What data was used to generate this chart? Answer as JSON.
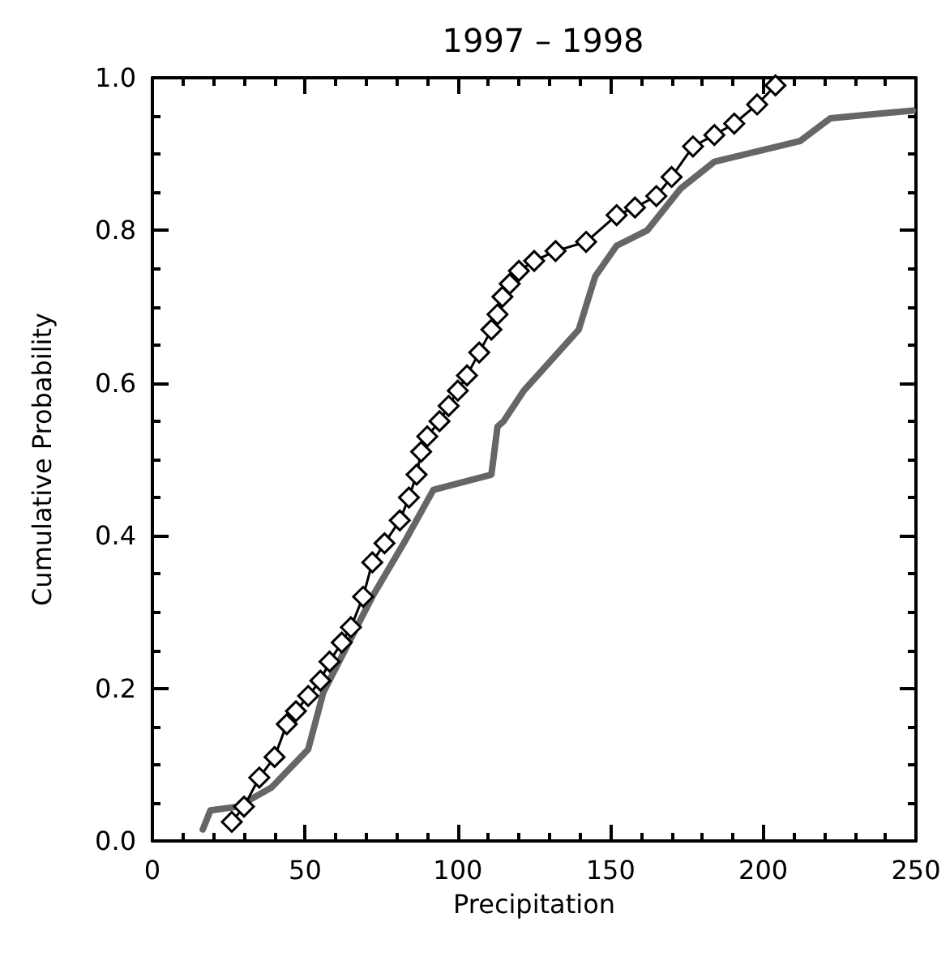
{
  "chart_data": {
    "type": "line",
    "title": "1997 – 1998",
    "xlabel": "Precipitation",
    "ylabel": "Cumulative Probability",
    "xlim": [
      0,
      250
    ],
    "xticks": [
      0,
      50,
      100,
      150,
      200,
      250
    ],
    "ylim": [
      0,
      1
    ],
    "yticks": [
      {
        "value": 0,
        "label": "0.0"
      },
      {
        "value": 0.2,
        "label": "0.2"
      },
      {
        "value": 0.4,
        "label": "0.4"
      },
      {
        "value": 0.6,
        "label": "0.6"
      },
      {
        "value": 0.8,
        "label": "0.8"
      },
      {
        "value": 1,
        "label": "1.0"
      }
    ],
    "grid": false,
    "line_style": "solid",
    "series": [
      {
        "color": "#000000",
        "marker": "diamond",
        "x": [
          26,
          30,
          35,
          40,
          44,
          47,
          51,
          55,
          58,
          62,
          65,
          69,
          72,
          76,
          81,
          84,
          86.5,
          88,
          90,
          94,
          97,
          100,
          103,
          107,
          111,
          113,
          114.6,
          117,
          120,
          125,
          132,
          142,
          152,
          158,
          165,
          170,
          177,
          184,
          190.5,
          198,
          204
        ],
        "values": [
          0.025,
          0.045,
          0.083,
          0.11,
          0.153,
          0.17,
          0.19,
          0.21,
          0.235,
          0.26,
          0.28,
          0.32,
          0.365,
          0.39,
          0.42,
          0.45,
          0.48,
          0.51,
          0.53,
          0.55,
          0.57,
          0.59,
          0.61,
          0.64,
          0.67,
          0.69,
          0.713,
          0.73,
          0.747,
          0.76,
          0.773,
          0.785,
          0.82,
          0.83,
          0.845,
          0.87,
          0.91,
          0.925,
          0.94,
          0.965,
          0.99
        ]
      },
      {
        "color": "#666666",
        "marker": "none",
        "x": [
          16.5,
          19,
          28,
          39,
          51,
          56,
          72,
          83,
          92,
          111,
          113,
          115,
          121.6,
          139.6,
          145,
          152,
          162,
          173,
          184,
          212,
          222,
          238,
          249
        ],
        "values": [
          0.015,
          0.04,
          0.045,
          0.07,
          0.12,
          0.195,
          0.32,
          0.395,
          0.46,
          0.48,
          0.543,
          0.55,
          0.59,
          0.67,
          0.74,
          0.78,
          0.8,
          0.855,
          0.89,
          0.917,
          0.947,
          0.953,
          0.957
        ]
      }
    ]
  }
}
